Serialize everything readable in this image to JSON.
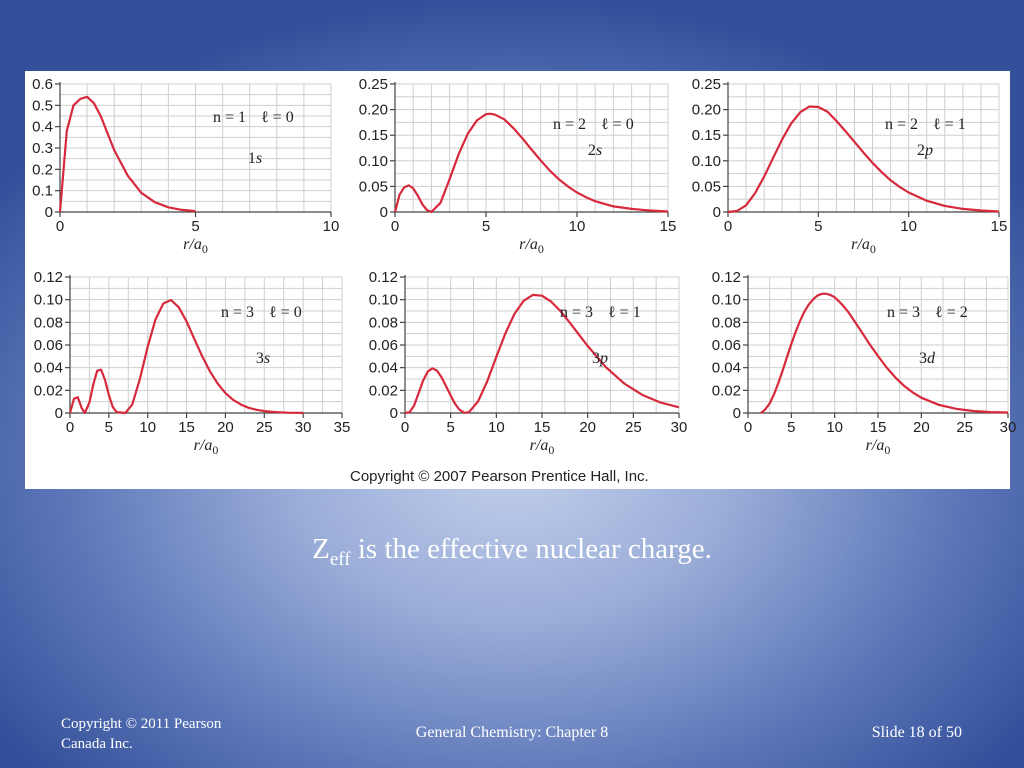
{
  "figure": {
    "copyright": "Copyright © 2007 Pearson Prentice Hall, Inc."
  },
  "chart_data": [
    {
      "type": "line",
      "n_label": "n = 1",
      "l_label": "ℓ = 0",
      "orbital": "1s",
      "xlabel": "r/a0",
      "xlim": [
        0,
        10
      ],
      "ylim": [
        0,
        0.6
      ],
      "xticks": [
        0,
        5,
        10
      ],
      "yticks": [
        0,
        0.1,
        0.2,
        0.3,
        0.4,
        0.5,
        0.6
      ],
      "ytick_labels": [
        "0",
        "0.1",
        "0.2",
        "0.3",
        "0.4",
        "0.5",
        "0.6"
      ],
      "grid": true,
      "x": [
        0,
        0.25,
        0.5,
        0.75,
        1,
        1.25,
        1.5,
        2,
        2.5,
        3,
        3.5,
        4,
        4.5,
        5
      ],
      "y": [
        0,
        0.38,
        0.5,
        0.53,
        0.54,
        0.51,
        0.45,
        0.29,
        0.17,
        0.09,
        0.046,
        0.022,
        0.01,
        0.004
      ]
    },
    {
      "type": "line",
      "n_label": "n = 2",
      "l_label": "ℓ = 0",
      "orbital": "2s",
      "xlabel": "r/a0",
      "xlim": [
        0,
        15
      ],
      "ylim": [
        0,
        0.25
      ],
      "xticks": [
        0,
        5,
        10,
        15
      ],
      "yticks": [
        0,
        0.05,
        0.1,
        0.15,
        0.2,
        0.25
      ],
      "ytick_labels": [
        "0",
        "0.05",
        "0.10",
        "0.15",
        "0.20",
        "0.25"
      ],
      "grid": true,
      "x": [
        0,
        0.25,
        0.5,
        0.764,
        1,
        1.25,
        1.5,
        1.75,
        2,
        2.5,
        3,
        3.5,
        4,
        4.5,
        5,
        5.236,
        5.5,
        6,
        6.5,
        7,
        7.5,
        8,
        8.5,
        9,
        9.5,
        10,
        10.5,
        11,
        12,
        13,
        14,
        15
      ],
      "y": [
        0,
        0.034,
        0.048,
        0.052,
        0.046,
        0.032,
        0.015,
        0.004,
        0,
        0.018,
        0.064,
        0.113,
        0.153,
        0.179,
        0.191,
        0.192,
        0.19,
        0.181,
        0.164,
        0.144,
        0.122,
        0.101,
        0.081,
        0.064,
        0.05,
        0.038,
        0.029,
        0.021,
        0.011,
        0.006,
        0.003,
        0.001
      ]
    },
    {
      "type": "line",
      "n_label": "n = 2",
      "l_label": "ℓ = 1",
      "orbital": "2p",
      "xlabel": "r/a0",
      "xlim": [
        0,
        15
      ],
      "ylim": [
        0,
        0.25
      ],
      "xticks": [
        0,
        5,
        10,
        15
      ],
      "yticks": [
        0,
        0.05,
        0.1,
        0.15,
        0.2,
        0.25
      ],
      "ytick_labels": [
        "0",
        "0.05",
        "0.10",
        "0.15",
        "0.20",
        "0.25"
      ],
      "grid": true,
      "x": [
        0,
        0.5,
        1,
        1.5,
        2,
        2.5,
        3,
        3.5,
        4,
        4.5,
        5,
        5.5,
        6,
        6.5,
        7,
        7.5,
        8,
        8.5,
        9,
        9.5,
        10,
        11,
        12,
        13,
        14,
        15
      ],
      "y": [
        0,
        0.002,
        0.013,
        0.037,
        0.069,
        0.106,
        0.142,
        0.173,
        0.195,
        0.206,
        0.205,
        0.196,
        0.178,
        0.158,
        0.137,
        0.116,
        0.096,
        0.078,
        0.062,
        0.049,
        0.038,
        0.022,
        0.012,
        0.006,
        0.003,
        0.001
      ]
    },
    {
      "type": "line",
      "n_label": "n = 3",
      "l_label": "ℓ = 0",
      "orbital": "3s",
      "xlabel": "r/a0",
      "xlim": [
        0,
        35
      ],
      "ylim": [
        0,
        0.12
      ],
      "xticks": [
        0,
        5,
        10,
        15,
        20,
        25,
        30,
        35
      ],
      "yticks": [
        0,
        0.02,
        0.04,
        0.06,
        0.08,
        0.1,
        0.12
      ],
      "ytick_labels": [
        "0",
        "0.02",
        "0.04",
        "0.06",
        "0.08",
        "0.10",
        "0.12"
      ],
      "grid": true,
      "x": [
        0,
        0.5,
        1,
        1.5,
        1.9,
        2.5,
        3,
        3.5,
        4,
        4.5,
        5,
        5.5,
        6,
        6.5,
        7.1,
        8,
        9,
        10,
        11,
        12,
        13,
        14,
        15,
        16,
        17,
        18,
        19,
        20,
        21,
        22,
        23,
        24,
        25,
        26,
        27,
        28,
        29,
        30
      ],
      "y": [
        0,
        0.0124,
        0.0139,
        0.0043,
        0,
        0.0093,
        0.0252,
        0.0372,
        0.0382,
        0.0292,
        0.0158,
        0.0055,
        0.0008,
        0.0004,
        0,
        0.0073,
        0.0301,
        0.0585,
        0.0825,
        0.0966,
        0.0997,
        0.0933,
        0.0807,
        0.0654,
        0.0502,
        0.0368,
        0.0259,
        0.0176,
        0.0116,
        0.0074,
        0.0046,
        0.0028,
        0.0017,
        0.001,
        0.0006,
        0.0003,
        0.0002,
        0.0001
      ]
    },
    {
      "type": "line",
      "n_label": "n = 3",
      "l_label": "ℓ = 1",
      "orbital": "3p",
      "xlabel": "r/a0",
      "xlim": [
        0,
        30
      ],
      "ylim": [
        0,
        0.12
      ],
      "xticks": [
        0,
        5,
        10,
        15,
        20,
        25,
        30
      ],
      "yticks": [
        0,
        0.02,
        0.04,
        0.06,
        0.08,
        0.1,
        0.12
      ],
      "ytick_labels": [
        "0",
        "0.02",
        "0.04",
        "0.06",
        "0.08",
        "0.10",
        "0.12"
      ],
      "grid": true,
      "x": [
        0,
        0.5,
        1,
        1.5,
        2,
        2.5,
        3,
        3.5,
        4,
        4.5,
        5,
        5.5,
        6,
        6.5,
        7,
        8,
        9,
        10,
        11,
        12,
        13,
        14,
        15,
        16,
        17,
        18,
        19,
        20,
        22,
        24,
        26,
        28,
        30
      ],
      "y": [
        0,
        0.0007,
        0.0066,
        0.0177,
        0.0289,
        0.0366,
        0.0394,
        0.0374,
        0.0316,
        0.0236,
        0.0153,
        0.0079,
        0.0026,
        0.0002,
        0.0007,
        0.0103,
        0.0279,
        0.0495,
        0.0705,
        0.0877,
        0.0991,
        0.1042,
        0.1035,
        0.0983,
        0.0901,
        0.0801,
        0.0696,
        0.0591,
        0.0404,
        0.026,
        0.0159,
        0.0092,
        0.005
      ]
    },
    {
      "type": "line",
      "n_label": "n = 3",
      "l_label": "ℓ = 2",
      "orbital": "3d",
      "xlabel": "r/a0",
      "xlim": [
        0,
        30
      ],
      "ylim": [
        0,
        0.12
      ],
      "xticks": [
        0,
        5,
        10,
        15,
        20,
        25,
        30
      ],
      "yticks": [
        0,
        0.02,
        0.04,
        0.06,
        0.08,
        0.1,
        0.12
      ],
      "ytick_labels": [
        "0",
        "0.02",
        "0.04",
        "0.06",
        "0.08",
        "0.10",
        "0.12"
      ],
      "grid": true,
      "x": [
        1.5,
        2,
        2.5,
        3,
        3.5,
        4,
        4.5,
        5,
        5.5,
        6,
        6.5,
        7,
        7.5,
        8,
        8.5,
        9,
        9.5,
        10,
        10.5,
        11,
        11.5,
        12,
        13,
        14,
        15,
        16,
        17,
        18,
        19,
        20,
        22,
        24,
        26,
        28,
        30
      ],
      "y": [
        0,
        0.0032,
        0.0085,
        0.0164,
        0.0264,
        0.0376,
        0.0494,
        0.0609,
        0.0717,
        0.0812,
        0.0893,
        0.0956,
        0.1002,
        0.1035,
        0.1051,
        0.1053,
        0.1042,
        0.1021,
        0.0985,
        0.0945,
        0.0897,
        0.0843,
        0.0728,
        0.0611,
        0.0503,
        0.0401,
        0.0314,
        0.024,
        0.0182,
        0.0135,
        0.0072,
        0.0037,
        0.0018,
        0.0008,
        0.0004
      ]
    }
  ],
  "caption": {
    "main": "Z",
    "sub": "eff",
    "rest": " is the effective nuclear charge."
  },
  "footer": {
    "left": "Copyright © 2011 Pearson Canada Inc.",
    "center": "General Chemistry: Chapter 8",
    "right": "Slide 18 of 50"
  }
}
